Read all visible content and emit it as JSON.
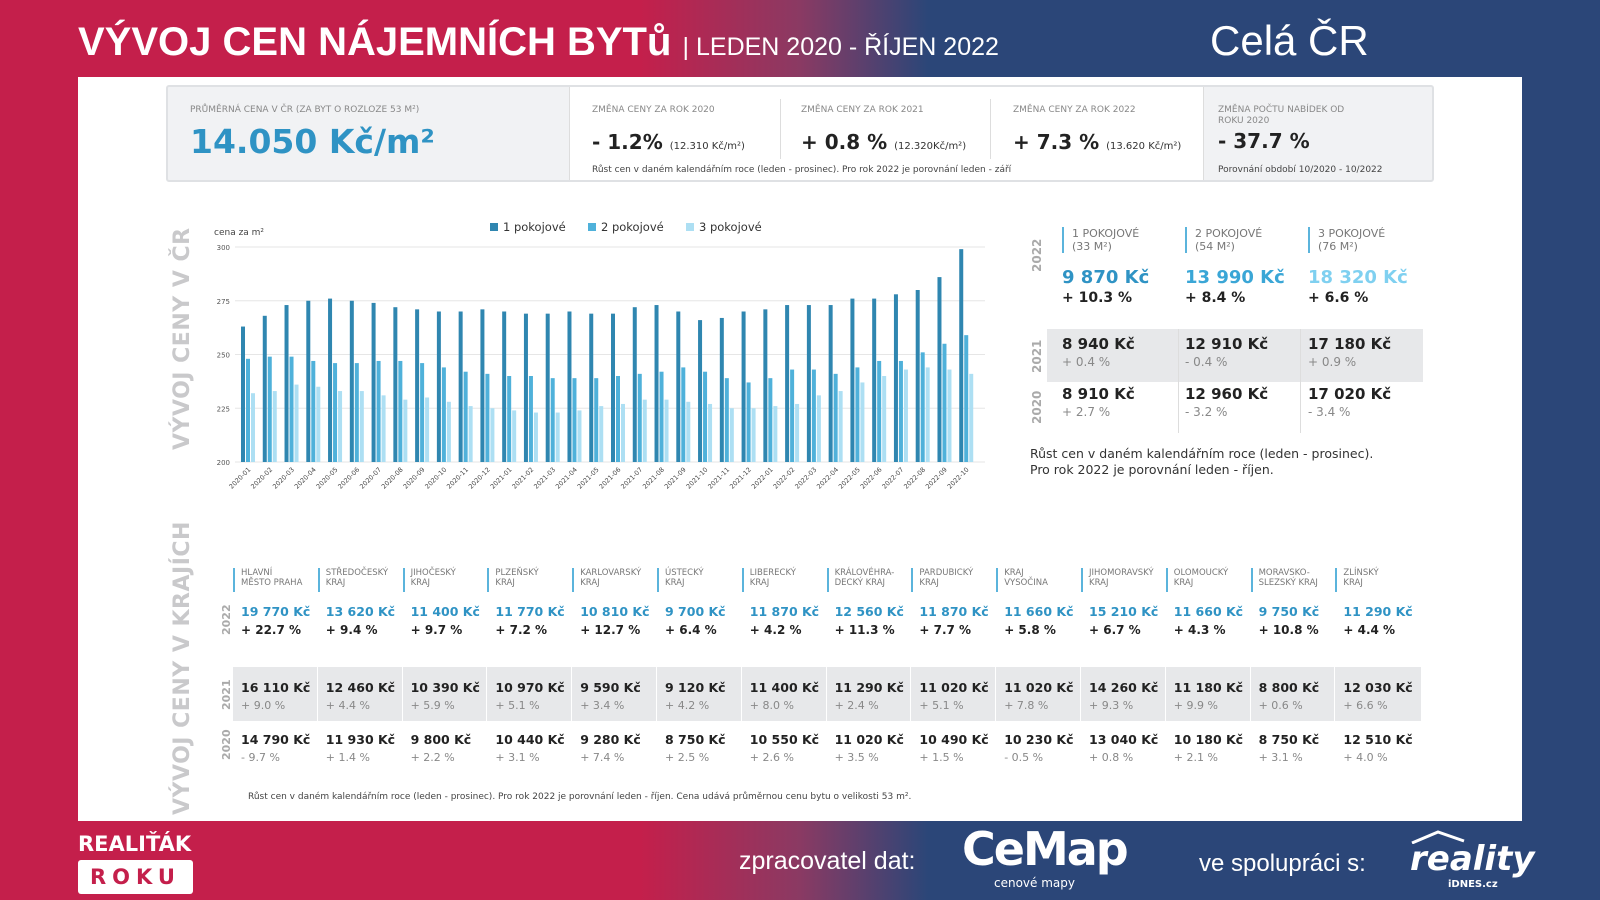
{
  "header": {
    "title": "VÝVOJ CEN NÁJEMNÍCH BYTů",
    "period": "| LEDEN 2020 - ŘÍJEN 2022",
    "region": "Celá ČR"
  },
  "stats": {
    "avg": {
      "label": "PRŮMĚRNÁ CENA V ČR (ZA BYT O ROZLOZE 53 m²)",
      "value": "14.050 Kč/m²"
    },
    "y2020": {
      "label": "ZMĚNA CENY ZA ROK 2020",
      "value": "- 1.2%",
      "detail": "(12.310 Kč/m²)"
    },
    "y2021": {
      "label": "ZMĚNA CENY ZA ROK 2021",
      "value": "+ 0.8 %",
      "detail": "(12.320Kč/m²)"
    },
    "y2022": {
      "label": "ZMĚNA CENY ZA ROK 2022",
      "value": "+ 7.3 %",
      "detail": "(13.620 Kč/m²)"
    },
    "offers": {
      "label": "ZMĚNA POČTU NABÍDEK OD ROKU 2020",
      "value": "- 37.7 %",
      "note": "Porovnání období 10/2020 - 10/2022"
    },
    "note": "Růst cen v daném kalendářním roce (leden - prosinec). Pro rok 2022 je porovnání leden - září"
  },
  "section1_label": "VÝVOJ CENY V ČR",
  "section2_label": "VÝVOJ CENY V KRAJÍCH",
  "colors": {
    "red": "#c41f4b",
    "blue": "#2b4678",
    "s1": "#2f86b0",
    "s2": "#4fb1da",
    "s3": "#addff3"
  },
  "chart_data": {
    "type": "bar",
    "ylabel": "cena za m²",
    "ylim": [
      200,
      300
    ],
    "yticks": [
      200,
      225,
      250,
      275,
      300
    ],
    "grid": true,
    "legend": "top",
    "categories": [
      "2020-01",
      "2020-02",
      "2020-03",
      "2020-04",
      "2020-05",
      "2020-06",
      "2020-07",
      "2020-08",
      "2020-09",
      "2020-10",
      "2020-11",
      "2020-12",
      "2021-01",
      "2021-02",
      "2021-03",
      "2021-04",
      "2021-05",
      "2021-06",
      "2021-07",
      "2021-08",
      "2021-09",
      "2021-10",
      "2021-11",
      "2021-12",
      "2022-01",
      "2022-02",
      "2022-03",
      "2022-04",
      "2022-05",
      "2022-06",
      "2022-07",
      "2022-08",
      "2022-09",
      "2022-10"
    ],
    "series": [
      {
        "name": "1 pokojové",
        "values": [
          263,
          268,
          273,
          275,
          276,
          275,
          274,
          272,
          271,
          270,
          270,
          271,
          270,
          269,
          269,
          270,
          269,
          269,
          272,
          273,
          270,
          266,
          267,
          270,
          271,
          273,
          273,
          273,
          276,
          276,
          278,
          280,
          286,
          299
        ]
      },
      {
        "name": "2 pokojové",
        "values": [
          248,
          249,
          249,
          247,
          246,
          246,
          247,
          247,
          246,
          244,
          242,
          241,
          240,
          240,
          239,
          239,
          239,
          240,
          241,
          242,
          244,
          242,
          239,
          237,
          239,
          243,
          243,
          241,
          244,
          247,
          247,
          251,
          255,
          259
        ]
      },
      {
        "name": "3 pokojové",
        "values": [
          232,
          233,
          236,
          235,
          233,
          233,
          231,
          229,
          230,
          228,
          226,
          225,
          224,
          223,
          223,
          224,
          226,
          227,
          229,
          229,
          228,
          227,
          225,
          225,
          226,
          227,
          231,
          233,
          237,
          240,
          243,
          244,
          243,
          241
        ]
      }
    ]
  },
  "rooms": {
    "years": [
      "2022",
      "2021",
      "2020"
    ],
    "cols": [
      {
        "h1": "1 POKOJOVÉ",
        "h2": "(33 m²)",
        "color": "#2f93c4",
        "p2022": "9 870 Kč",
        "c2022": "+ 10.3 %",
        "p2021": "8 940 Kč",
        "c2021": "+ 0.4 %",
        "p2020": "8 910 Kč",
        "c2020": "+ 2.7 %"
      },
      {
        "h1": "2 POKOJOVÉ",
        "h2": "(54 m²)",
        "color": "#3aa6d6",
        "p2022": "13 990 Kč",
        "c2022": "+ 8.4 %",
        "p2021": "12 910 Kč",
        "c2021": "- 0.4 %",
        "p2020": "12 960 Kč",
        "c2020": "- 3.2 %"
      },
      {
        "h1": "3 POKOJOVÉ",
        "h2": "(76 m²)",
        "color": "#7fd0f0",
        "p2022": "18 320 Kč",
        "c2022": "+ 6.6 %",
        "p2021": "17 180 Kč",
        "c2021": "+ 0.9 %",
        "p2020": "17 020 Kč",
        "c2020": "- 3.4 %"
      }
    ],
    "note1": "Růst cen v daném kalendářním roce (leden - prosinec).",
    "note2": "Pro rok 2022 je porovnání leden - říjen."
  },
  "regions": [
    {
      "h1": "HLAVNÍ",
      "h2": "MĚSTO PRAHA",
      "p2022": "19 770 Kč",
      "c2022": "+ 22.7 %",
      "p2021": "16 110 Kč",
      "c2021": "+ 9.0 %",
      "p2020": "14 790 Kč",
      "c2020": "- 9.7 %"
    },
    {
      "h1": "STŘEDOČESKÝ",
      "h2": "KRAJ",
      "p2022": "13 620 Kč",
      "c2022": "+ 9.4 %",
      "p2021": "12 460 Kč",
      "c2021": "+ 4.4 %",
      "p2020": "11 930 Kč",
      "c2020": "+ 1.4 %"
    },
    {
      "h1": "JIHOČESKÝ",
      "h2": "KRAJ",
      "p2022": "11 400 Kč",
      "c2022": "+ 9.7 %",
      "p2021": "10 390 Kč",
      "c2021": "+ 5.9 %",
      "p2020": "9 800 Kč",
      "c2020": "+ 2.2 %"
    },
    {
      "h1": "PLZEŇSKÝ",
      "h2": "KRAJ",
      "p2022": "11 770 Kč",
      "c2022": "+ 7.2 %",
      "p2021": "10 970 Kč",
      "c2021": "+ 5.1 %",
      "p2020": "10 440 Kč",
      "c2020": "+ 3.1 %"
    },
    {
      "h1": "KARLOVARSKÝ",
      "h2": "KRAJ",
      "p2022": "10 810 Kč",
      "c2022": "+ 12.7 %",
      "p2021": "9 590 Kč",
      "c2021": "+ 3.4 %",
      "p2020": "9 280 Kč",
      "c2020": "+ 7.4 %"
    },
    {
      "h1": "ÚSTECKÝ",
      "h2": "KRAJ",
      "p2022": "9 700 Kč",
      "c2022": "+ 6.4 %",
      "p2021": "9 120 Kč",
      "c2021": "+ 4.2 %",
      "p2020": "8 750 Kč",
      "c2020": "+ 2.5 %"
    },
    {
      "h1": "LIBERECKÝ",
      "h2": "KRAJ",
      "p2022": "11 870 Kč",
      "c2022": "+ 4.2 %",
      "p2021": "11 400 Kč",
      "c2021": "+ 8.0 %",
      "p2020": "10 550 Kč",
      "c2020": "+ 2.6 %"
    },
    {
      "h1": "KRÁLOVÉHRA-",
      "h2": "DECKÝ KRAJ",
      "p2022": "12 560 Kč",
      "c2022": "+ 11.3 %",
      "p2021": "11 290 Kč",
      "c2021": "+ 2.4 %",
      "p2020": "11 020 Kč",
      "c2020": "+ 3.5 %"
    },
    {
      "h1": "PARDUBICKÝ",
      "h2": "KRAJ",
      "p2022": "11 870 Kč",
      "c2022": "+ 7.7 %",
      "p2021": "11 020 Kč",
      "c2021": "+ 5.1 %",
      "p2020": "10 490 Kč",
      "c2020": "+ 1.5 %"
    },
    {
      "h1": "KRAJ",
      "h2": "VYSOČINA",
      "p2022": "11 660 Kč",
      "c2022": "+ 5.8 %",
      "p2021": "11 020 Kč",
      "c2021": "+ 7.8 %",
      "p2020": "10 230 Kč",
      "c2020": "- 0.5 %"
    },
    {
      "h1": "JIHOMORAVSKÝ",
      "h2": "KRAJ",
      "p2022": "15 210 Kč",
      "c2022": "+ 6.7 %",
      "p2021": "14 260 Kč",
      "c2021": "+ 9.3 %",
      "p2020": "13 040 Kč",
      "c2020": "+ 0.8 %"
    },
    {
      "h1": "OLOMOUCKÝ",
      "h2": "KRAJ",
      "p2022": "11 660 Kč",
      "c2022": "+ 4.3 %",
      "p2021": "11 180 Kč",
      "c2021": "+ 9.9 %",
      "p2020": "10 180 Kč",
      "c2020": "+ 2.1 %"
    },
    {
      "h1": "MORAVSKO-",
      "h2": "SLEZSKÝ KRAJ",
      "p2022": "9 750 Kč",
      "c2022": "+ 10.8 %",
      "p2021": "8 800 Kč",
      "c2021": "+ 0.6 %",
      "p2020": "8 750 Kč",
      "c2020": "+ 3.1 %"
    },
    {
      "h1": "ZLÍNSKÝ",
      "h2": "KRAJ",
      "p2022": "11 290 Kč",
      "c2022": "+ 4.4 %",
      "p2021": "12 030 Kč",
      "c2021": "+ 6.6 %",
      "p2020": "12 510 Kč",
      "c2020": "+ 4.0 %"
    }
  ],
  "regions_note": "Růst cen v daném kalendářním roce (leden - prosinec). Pro rok 2022 je porovnání leden - říjen. Cena udává průměrnou cenu bytu o velikosti 53 m².",
  "footer": {
    "logo1_top": "REALIŤÁK",
    "logo1_bottom": "ROKU",
    "processor_label": "zpracovatel dat:",
    "cemap": "CeMap",
    "cemap_sub": "cenové mapy",
    "partner_label": "ve spolupráci s:",
    "reality": "reality",
    "reality_sub": "iDNES.cz"
  }
}
